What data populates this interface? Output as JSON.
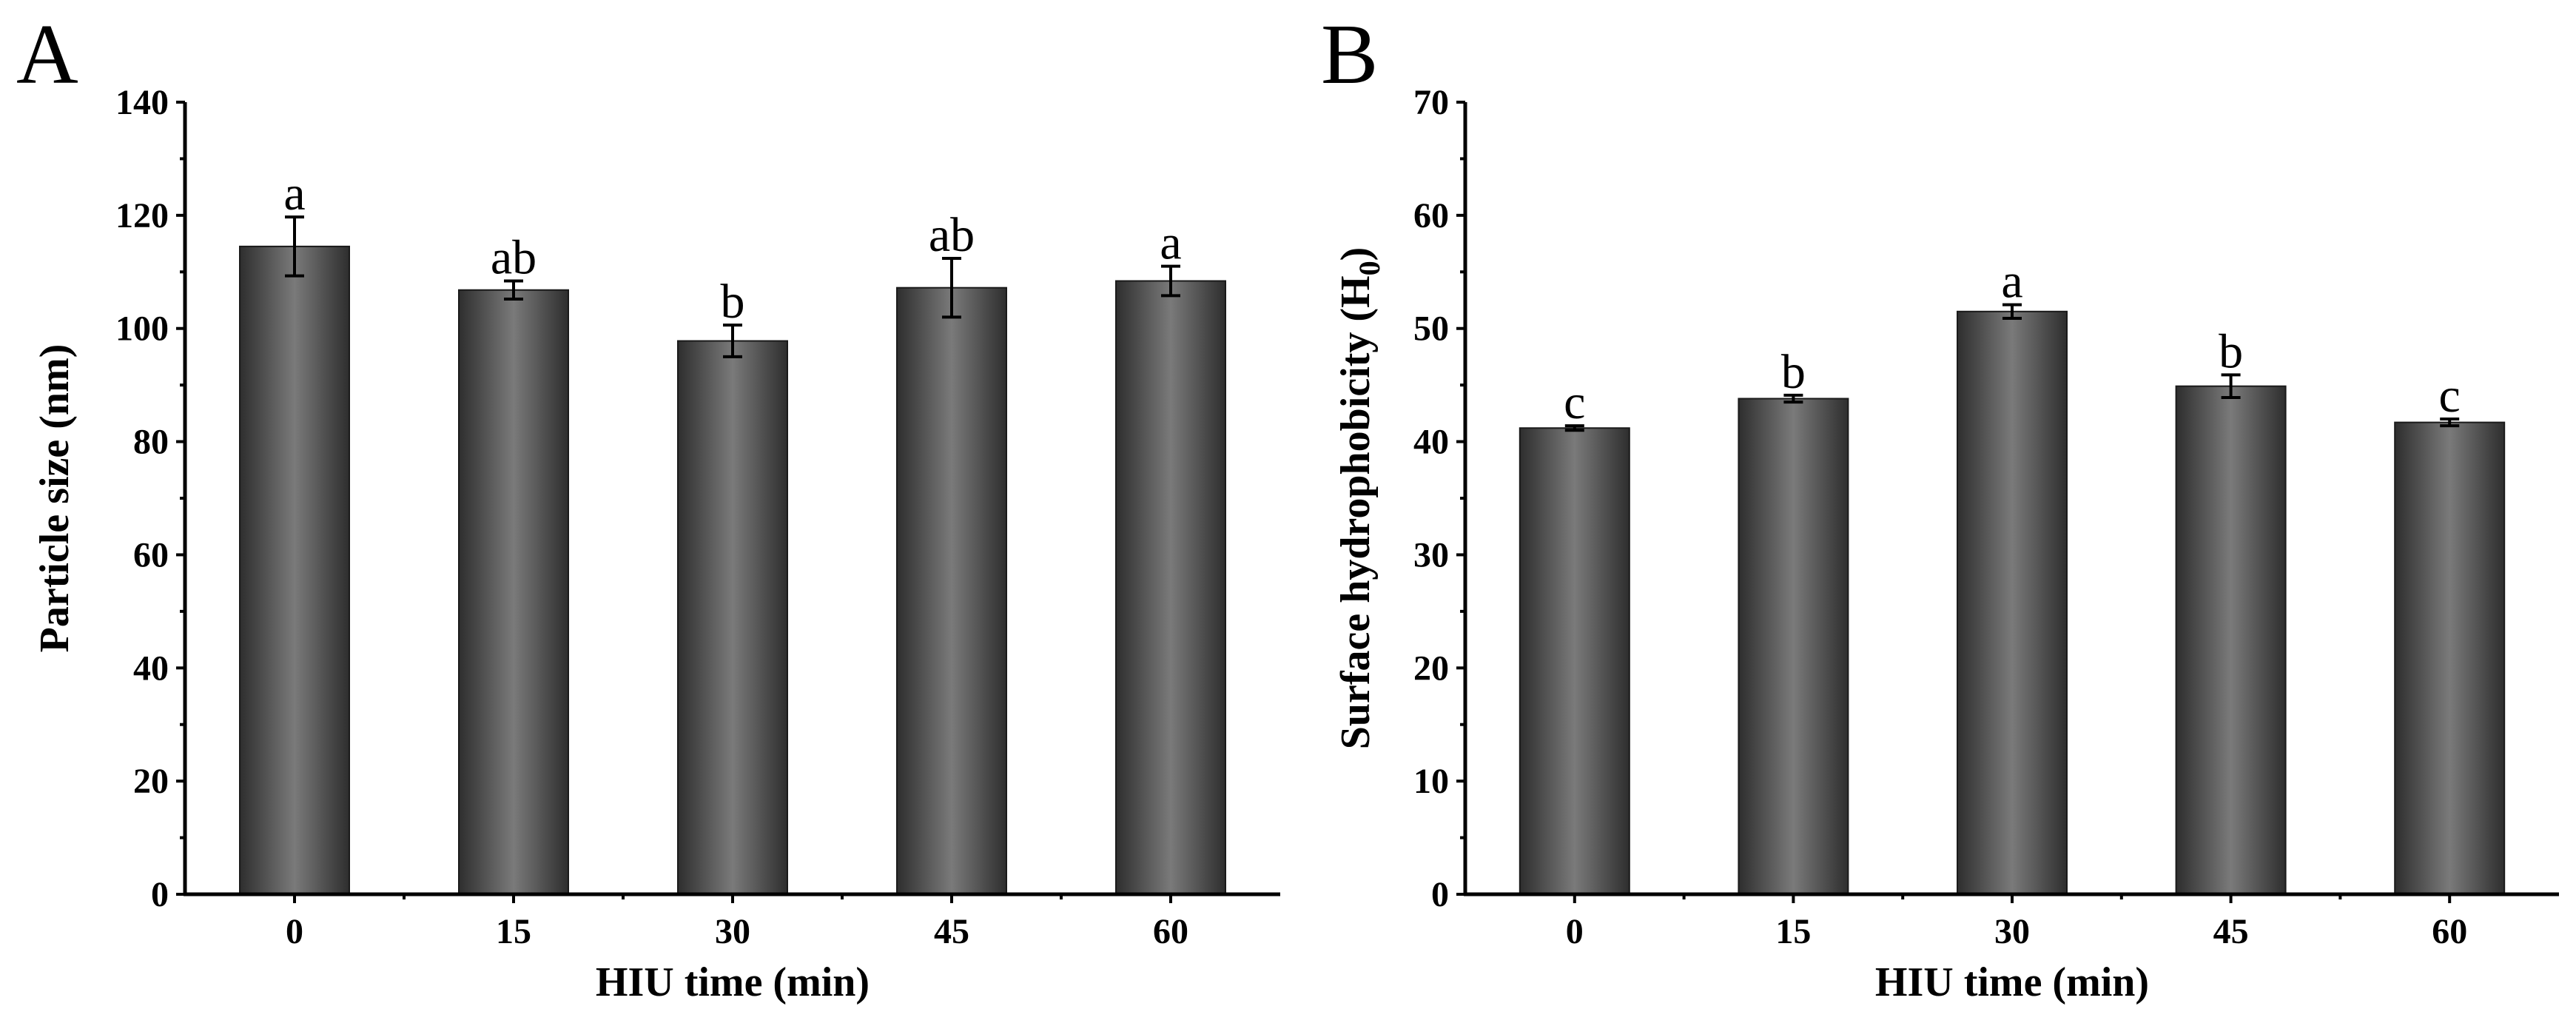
{
  "chart_data": [
    {
      "type": "bar",
      "panel": "A",
      "title": "",
      "xlabel": "HIU time (min)",
      "ylabel": "Particle size (nm)",
      "ylabel_subscript": "",
      "ylabel_suffix": "",
      "categories": [
        "0",
        "15",
        "30",
        "45",
        "60"
      ],
      "values": [
        114.5,
        106.8,
        97.8,
        107.2,
        108.4
      ],
      "errors": [
        5.2,
        1.6,
        2.8,
        5.2,
        2.6
      ],
      "significance": [
        "a",
        "ab",
        "b",
        "ab",
        "a"
      ],
      "ylim": [
        0,
        140
      ],
      "yticks": [
        0,
        20,
        40,
        60,
        80,
        100,
        120,
        140
      ],
      "yminor": 10,
      "legend": "none",
      "grid": false
    },
    {
      "type": "bar",
      "panel": "B",
      "title": "",
      "xlabel": "HIU time (min)",
      "ylabel": "Surface hydrophobicity (H",
      "ylabel_subscript": "0",
      "ylabel_suffix": ")",
      "categories": [
        "0",
        "15",
        "30",
        "45",
        "60"
      ],
      "values": [
        41.2,
        43.8,
        51.5,
        44.9,
        41.7
      ],
      "errors": [
        0.2,
        0.3,
        0.6,
        1.0,
        0.3
      ],
      "significance": [
        "c",
        "b",
        "a",
        "b",
        "c"
      ],
      "ylim": [
        0,
        70
      ],
      "yticks": [
        0,
        10,
        20,
        30,
        40,
        50,
        60,
        70
      ],
      "yminor": 5,
      "legend": "none",
      "grid": false
    }
  ]
}
